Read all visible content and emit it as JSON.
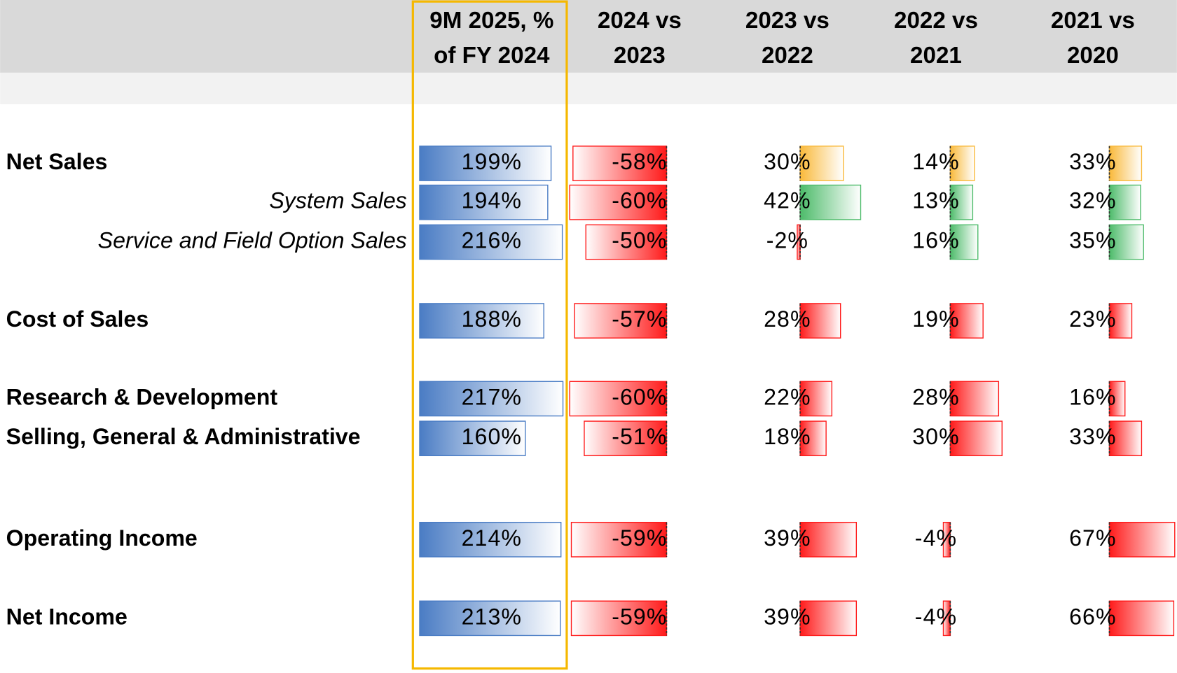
{
  "chart_data": {
    "type": "bar-table",
    "columns": [
      [
        "9M 2025, %",
        "of FY 2024"
      ],
      [
        "2024 vs",
        "2023"
      ],
      [
        "2023 vs",
        "2022"
      ],
      [
        "2022 vs",
        "2021"
      ],
      [
        "2021 vs",
        "2020"
      ]
    ],
    "palette": {
      "blue": "#4a7cc4",
      "red": "#ff1a1a",
      "yellow": "#f9b93a",
      "green": "#4dbb6a"
    },
    "rows": [
      {
        "label": "Net Sales",
        "style": "bold",
        "values": [
          199,
          -58,
          30,
          14,
          33
        ],
        "value_labels": [
          "199%",
          "-58%",
          "30%",
          "14%",
          "33%"
        ],
        "colors": [
          "blue",
          "red",
          "yellow",
          "yellow",
          "yellow"
        ]
      },
      {
        "label": "System Sales",
        "style": "italic",
        "values": [
          194,
          -60,
          42,
          13,
          32
        ],
        "value_labels": [
          "194%",
          "-60%",
          "42%",
          "13%",
          "32%"
        ],
        "colors": [
          "blue",
          "red",
          "green",
          "green",
          "green"
        ]
      },
      {
        "label": "Service and Field Option Sales",
        "style": "italic",
        "values": [
          216,
          -50,
          -2,
          16,
          35
        ],
        "value_labels": [
          "216%",
          "-50%",
          "-2%",
          "16%",
          "35%"
        ],
        "colors": [
          "blue",
          "red",
          "red",
          "green",
          "green"
        ]
      },
      {
        "label": "Cost of Sales",
        "style": "bold",
        "values": [
          188,
          -57,
          28,
          19,
          23
        ],
        "value_labels": [
          "188%",
          "-57%",
          "28%",
          "19%",
          "23%"
        ],
        "colors": [
          "blue",
          "red",
          "red",
          "red",
          "red"
        ]
      },
      {
        "label": "Research & Development",
        "style": "bold",
        "values": [
          217,
          -60,
          22,
          28,
          16
        ],
        "value_labels": [
          "217%",
          "-60%",
          "22%",
          "28%",
          "16%"
        ],
        "colors": [
          "blue",
          "red",
          "red",
          "red",
          "red"
        ]
      },
      {
        "label": "Selling, General & Administrative",
        "style": "bold",
        "values": [
          160,
          -51,
          18,
          30,
          33
        ],
        "value_labels": [
          "160%",
          "-51%",
          "18%",
          "30%",
          "33%"
        ],
        "colors": [
          "blue",
          "red",
          "red",
          "red",
          "red"
        ]
      },
      {
        "label": "Operating Income",
        "style": "bold",
        "values": [
          214,
          -59,
          39,
          -4,
          67
        ],
        "value_labels": [
          "214%",
          "-59%",
          "39%",
          "-4%",
          "67%"
        ],
        "colors": [
          "blue",
          "red",
          "red",
          "red",
          "red"
        ]
      },
      {
        "label": "Net Income",
        "style": "bold",
        "values": [
          213,
          -59,
          39,
          -4,
          66
        ],
        "value_labels": [
          "213%",
          "-59%",
          "39%",
          "-4%",
          "66%"
        ],
        "colors": [
          "blue",
          "red",
          "red",
          "red",
          "red"
        ]
      }
    ]
  }
}
